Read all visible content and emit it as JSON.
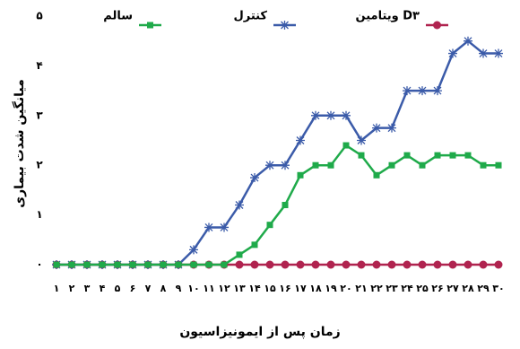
{
  "chart_data": {
    "type": "line",
    "x_label": "زمان پس از ایمونیزاسیون",
    "y_label": "میانگین شدت بیماری",
    "categories": [
      "۱",
      "۲",
      "۳",
      "۴",
      "۵",
      "۶",
      "۷",
      "۸",
      "۹",
      "۱۰",
      "۱۱",
      "۱۲",
      "۱۳",
      "۱۴",
      "۱۵",
      "۱۶",
      "۱۷",
      "۱۸",
      "۱۹",
      "۲۰",
      "۲۱",
      "۲۲",
      "۲۳",
      "۲۴",
      "۲۵",
      "۲۶",
      "۲۷",
      "۲۸",
      "۲۹",
      "۳۰"
    ],
    "ylim": [
      0,
      5
    ],
    "yticks": [
      {
        "value": 0,
        "label": "۰"
      },
      {
        "value": 1,
        "label": "۱"
      },
      {
        "value": 2,
        "label": "۲"
      },
      {
        "value": 3,
        "label": "۳"
      },
      {
        "value": 4,
        "label": "۴"
      },
      {
        "value": 5,
        "label": "۵"
      }
    ],
    "series": [
      {
        "name": "ویتامین D۳",
        "color": "#b0234f",
        "marker": "circle",
        "values": [
          0,
          0,
          0,
          0,
          0,
          0,
          0,
          0,
          0,
          0,
          0,
          0,
          0,
          0,
          0,
          0,
          0,
          0,
          0,
          0,
          0,
          0,
          0,
          0,
          0,
          0,
          0,
          0,
          0,
          0
        ]
      },
      {
        "name": "کنترل",
        "color": "#3b5ba9",
        "marker": "star",
        "values": [
          0,
          0,
          0,
          0,
          0,
          0,
          0,
          0,
          0,
          0.3,
          0.75,
          0.75,
          1.2,
          1.75,
          2,
          2,
          2.5,
          3,
          3,
          3,
          2.5,
          2.75,
          2.75,
          3.5,
          3.5,
          3.5,
          4.25,
          4.5,
          4.25,
          4.25
        ]
      },
      {
        "name": "سالم",
        "color": "#1faa4a",
        "marker": "square",
        "values": [
          0,
          0,
          0,
          0,
          0,
          0,
          0,
          0,
          0,
          0,
          0,
          0,
          0.2,
          0.4,
          0.8,
          1.2,
          1.8,
          2,
          2,
          2.4,
          2.2,
          1.8,
          2,
          2.2,
          2,
          2.2,
          2.2,
          2.2,
          2,
          2
        ]
      }
    ],
    "grid": false
  }
}
